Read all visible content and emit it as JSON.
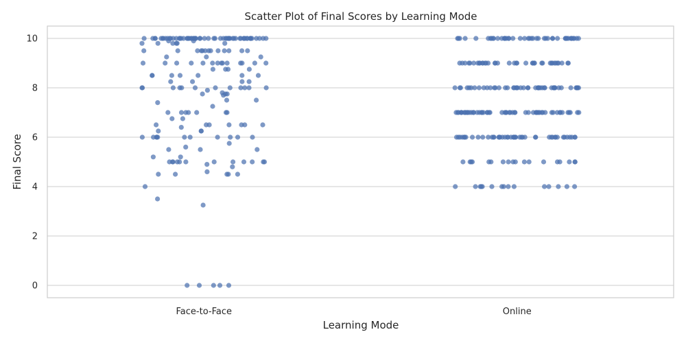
{
  "chart_data": {
    "type": "scatter",
    "title": "Scatter Plot of Final Scores by Learning Mode",
    "xlabel": "Learning Mode",
    "ylabel": "Final Score",
    "categories": [
      "Face-to-Face",
      "Online"
    ],
    "ylim": [
      -0.5,
      10.5
    ],
    "yticks": [
      0,
      2,
      4,
      6,
      8,
      10
    ],
    "grid": "horizontal",
    "legend": "none",
    "jitter": 0.2,
    "point_color": "#4c72b0",
    "series": [
      {
        "category": "Face-to-Face",
        "values": [
          10,
          10,
          10,
          10,
          10,
          10,
          10,
          10,
          10,
          10,
          10,
          10,
          10,
          10,
          10,
          10,
          10,
          10,
          10,
          10,
          10,
          10,
          10,
          10,
          10,
          10,
          10,
          10,
          10,
          10,
          10,
          10,
          10,
          10,
          10,
          10,
          10,
          10,
          10,
          10,
          10,
          10,
          10,
          10,
          10,
          10,
          10,
          10,
          10,
          10,
          10,
          10,
          10,
          10,
          10,
          10,
          10,
          10,
          10,
          10,
          9.8,
          9.8,
          9.8,
          9.8,
          9.8,
          9.8,
          9.9,
          9.9,
          9.5,
          9.5,
          9.5,
          9.5,
          9.5,
          9.5,
          9.5,
          9.5,
          9.5,
          9.5,
          9.5,
          9.5,
          9.5,
          9.25,
          9.25,
          9.25,
          9,
          9,
          9,
          9,
          9,
          9,
          9,
          9,
          9,
          9,
          9,
          9,
          9,
          9,
          8.75,
          8.75,
          8.75,
          8.75,
          8.5,
          8.5,
          8.5,
          8.5,
          8.5,
          8.5,
          8.5,
          8.25,
          8.25,
          8.25,
          8.25,
          8,
          8,
          8,
          8,
          8,
          8,
          8,
          8,
          8,
          8,
          8,
          8,
          7.9,
          7.8,
          7.75,
          7.75,
          7.75,
          7.7,
          7.5,
          7.5,
          7.4,
          7.25,
          7,
          7,
          7,
          7,
          7,
          7,
          7,
          6.75,
          6.75,
          6.5,
          6.5,
          6.5,
          6.5,
          6.5,
          6.5,
          6.5,
          6.4,
          6.25,
          6.25,
          6.25,
          6,
          6,
          6,
          6,
          6,
          6,
          6,
          6,
          6,
          6,
          6,
          5.75,
          5.6,
          5.5,
          5.5,
          5.5,
          5.2,
          5.2,
          5,
          5,
          5,
          5,
          5,
          5,
          5,
          5,
          5,
          5,
          5,
          5,
          4.9,
          4.8,
          4.6,
          4.5,
          4.5,
          4.5,
          4.5,
          4.5,
          4,
          3.5,
          3.25,
          0,
          0,
          0,
          0,
          0
        ]
      },
      {
        "category": "Online",
        "values": [
          10,
          10,
          10,
          10,
          10,
          10,
          10,
          10,
          10,
          10,
          10,
          10,
          10,
          10,
          10,
          10,
          10,
          10,
          10,
          10,
          10,
          10,
          10,
          10,
          10,
          10,
          10,
          10,
          10,
          10,
          10,
          10,
          10,
          10,
          10,
          10,
          10,
          10,
          10,
          10,
          10,
          10,
          10,
          10,
          10,
          9,
          9,
          9,
          9,
          9,
          9,
          9,
          9,
          9,
          9,
          9,
          9,
          9,
          9,
          9,
          9,
          9,
          9,
          9,
          9,
          9,
          9,
          9,
          9,
          9,
          9,
          9,
          9,
          9,
          9,
          9,
          9,
          9,
          9,
          9,
          9,
          9,
          9,
          8,
          8,
          8,
          8,
          8,
          8,
          8,
          8,
          8,
          8,
          8,
          8,
          8,
          8,
          8,
          8,
          8,
          8,
          8,
          8,
          8,
          8,
          8,
          8,
          8,
          8,
          8,
          8,
          8,
          8,
          8,
          8,
          8,
          8,
          8,
          8,
          8,
          8,
          8,
          8,
          8,
          8,
          8,
          8,
          8,
          8,
          8,
          8,
          7,
          7,
          7,
          7,
          7,
          7,
          7,
          7,
          7,
          7,
          7,
          7,
          7,
          7,
          7,
          7,
          7,
          7,
          7,
          7,
          7,
          7,
          7,
          7,
          7,
          7,
          7,
          7,
          7,
          7,
          7,
          7,
          7,
          7,
          7,
          7,
          7,
          7,
          7,
          7,
          7,
          7,
          7,
          7,
          7,
          7,
          7,
          7,
          7,
          7,
          7,
          7,
          7,
          7,
          7,
          6,
          6,
          6,
          6,
          6,
          6,
          6,
          6,
          6,
          6,
          6,
          6,
          6,
          6,
          6,
          6,
          6,
          6,
          6,
          6,
          6,
          6,
          6,
          6,
          6,
          6,
          6,
          6,
          6,
          6,
          6,
          6,
          6,
          6,
          6,
          6,
          6,
          6,
          6,
          6,
          6,
          6,
          6,
          6,
          6,
          6,
          5,
          5,
          5,
          5,
          5,
          5,
          5,
          5,
          5,
          5,
          5,
          5,
          5,
          5,
          5,
          5,
          5,
          5,
          4,
          4,
          4,
          4,
          4,
          4,
          4,
          4,
          4,
          4,
          4,
          4,
          4,
          4,
          4
        ]
      }
    ]
  }
}
